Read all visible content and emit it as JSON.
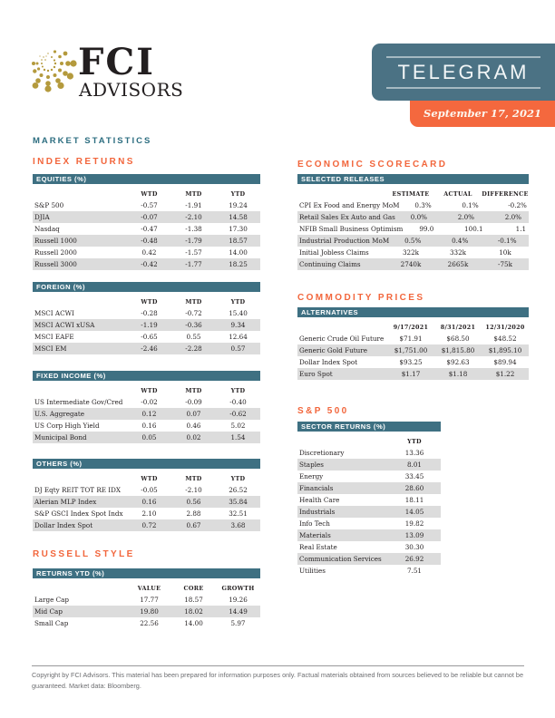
{
  "brand": {
    "fci": "FCI",
    "advisors": "ADVISORS",
    "logo_icon": "dotted-globe"
  },
  "banner": {
    "title": "TELEGRAM",
    "date": "September 17, 2021"
  },
  "market_statistics_title": "MARKET STATISTICS",
  "index_returns": {
    "title": "INDEX RETURNS",
    "tables": [
      {
        "header": "EQUITIES (%)",
        "columns": [
          "WTD",
          "MTD",
          "YTD"
        ],
        "rows": [
          [
            "S&P 500",
            "-0.57",
            "-1.91",
            "19.24"
          ],
          [
            "DJIA",
            "-0.07",
            "-2.10",
            "14.58"
          ],
          [
            "Nasdaq",
            "-0.47",
            "-1.38",
            "17.30"
          ],
          [
            "Russell 1000",
            "-0.48",
            "-1.79",
            "18.57"
          ],
          [
            "Russell 2000",
            "0.42",
            "-1.57",
            "14.00"
          ],
          [
            "Russell 3000",
            "-0.42",
            "-1.77",
            "18.25"
          ]
        ]
      },
      {
        "header": "FOREIGN (%)",
        "columns": [
          "WTD",
          "MTD",
          "YTD"
        ],
        "rows": [
          [
            "MSCI ACWI",
            "-0.28",
            "-0.72",
            "15.40"
          ],
          [
            "MSCI ACWI xUSA",
            "-1.19",
            "-0.36",
            "9.34"
          ],
          [
            "MSCI EAFE",
            "-0.65",
            "0.55",
            "12.64"
          ],
          [
            "MSCI EM",
            "-2.46",
            "-2.28",
            "0.57"
          ]
        ]
      },
      {
        "header": "FIXED INCOME (%)",
        "columns": [
          "WTD",
          "MTD",
          "YTD"
        ],
        "rows": [
          [
            "US Intermediate Gov/Cred",
            "-0.02",
            "-0.09",
            "-0.40"
          ],
          [
            "U.S. Aggregate",
            "0.12",
            "0.07",
            "-0.62"
          ],
          [
            "US Corp High Yield",
            "0.16",
            "0.46",
            "5.02"
          ],
          [
            "Municipal Bond",
            "0.05",
            "0.02",
            "1.54"
          ]
        ]
      },
      {
        "header": "OTHERS (%)",
        "columns": [
          "WTD",
          "MTD",
          "YTD"
        ],
        "rows": [
          [
            "DJ Eqty REIT TOT RE IDX",
            "-0.05",
            "-2.10",
            "26.52"
          ],
          [
            "Alerian MLP Index",
            "0.16",
            "0.56",
            "35.84"
          ],
          [
            "S&P GSCI Index Spot Indx",
            "2.10",
            "2.88",
            "32.51"
          ],
          [
            "Dollar Index Spot",
            "0.72",
            "0.67",
            "3.68"
          ]
        ]
      }
    ]
  },
  "russell_style": {
    "title": "RUSSELL STYLE",
    "table": {
      "header": "RETURNS YTD (%)",
      "columns": [
        "VALUE",
        "CORE",
        "GROWTH"
      ],
      "rows": [
        [
          "Large Cap",
          "17.77",
          "18.57",
          "19.26"
        ],
        [
          "Mid Cap",
          "19.80",
          "18.02",
          "14.49"
        ],
        [
          "Small Cap",
          "22.56",
          "14.00",
          "5.97"
        ]
      ]
    }
  },
  "economic_scorecard": {
    "title": "ECONOMIC SCORECARD",
    "table": {
      "header": "SELECTED RELEASES",
      "columns": [
        "ESTIMATE",
        "ACTUAL",
        "DIFFERENCE"
      ],
      "rows": [
        [
          "CPI Ex Food and Energy MoM",
          "0.3%",
          "0.1%",
          "-0.2%"
        ],
        [
          "Retail Sales Ex Auto and Gas",
          "0.0%",
          "2.0%",
          "2.0%"
        ],
        [
          "NFIB Small Business Optimism",
          "99.0",
          "100.1",
          "1.1"
        ],
        [
          "Industrial Production MoM",
          "0.5%",
          "0.4%",
          "-0.1%"
        ],
        [
          "Initial Jobless Claims",
          "322k",
          "332k",
          "10k"
        ],
        [
          "Continuing Claims",
          "2740k",
          "2665k",
          "-75k"
        ]
      ]
    }
  },
  "commodity_prices": {
    "title": "COMMODITY PRICES",
    "table": {
      "header": "ALTERNATIVES",
      "columns": [
        "9/17/2021",
        "8/31/2021",
        "12/31/2020"
      ],
      "rows": [
        [
          "Generic Crude Oil Future",
          "$71.91",
          "$68.50",
          "$48.52"
        ],
        [
          "Generic Gold Future",
          "$1,751.00",
          "$1,815.80",
          "$1,895.10"
        ],
        [
          "Dollar Index Spot",
          "$93.25",
          "$92.63",
          "$89.94"
        ],
        [
          "Euro Spot",
          "$1.17",
          "$1.18",
          "$1.22"
        ]
      ]
    }
  },
  "sp500": {
    "title": "S&P 500",
    "table": {
      "header": "SECTOR RETURNS (%)",
      "columns": [
        "YTD"
      ],
      "rows": [
        [
          "Discretionary",
          "13.36"
        ],
        [
          "Staples",
          "8.01"
        ],
        [
          "Energy",
          "33.45"
        ],
        [
          "Financials",
          "28.60"
        ],
        [
          "Health Care",
          "18.11"
        ],
        [
          "Industrials",
          "14.05"
        ],
        [
          "Info Tech",
          "19.82"
        ],
        [
          "Materials",
          "13.09"
        ],
        [
          "Real Estate",
          "30.30"
        ],
        [
          "Communication Services",
          "26.92"
        ],
        [
          "Utilities",
          "7.51"
        ]
      ]
    }
  },
  "footer": {
    "text": "Copyright by FCI Advisors. This material has been prepared for information purposes only. Factual materials obtained from sources believed to be reliable but cannot be guaranteed. Market data: Bloomberg."
  },
  "colors": {
    "banner_teal": "#4b7284",
    "table_bar_teal": "#3e7082",
    "orange": "#f4683e",
    "section_title_orange": "#f2663c",
    "section_title_teal": "#2d6e80",
    "row_stripe": "#dcdcdc",
    "logo_gold": "#b49a3d"
  }
}
